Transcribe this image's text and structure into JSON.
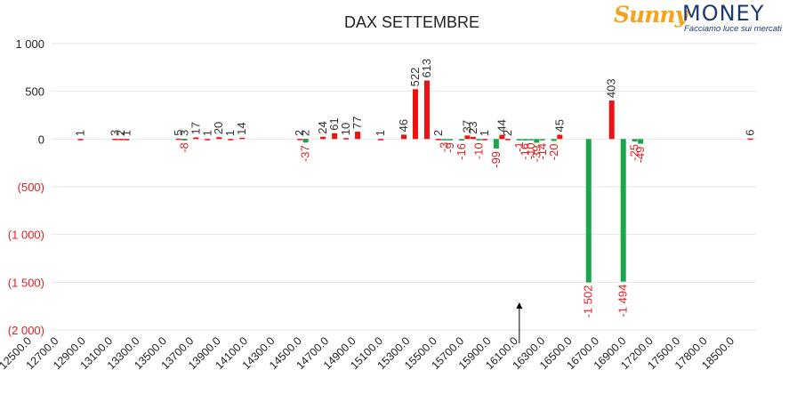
{
  "logo": {
    "brand_part1": "Sunny",
    "brand_part2": "MONEY",
    "tagline": "Facciamo luce sui mercati"
  },
  "chart_data": {
    "type": "bar",
    "title": "DAX SETTEMBRE",
    "xlabel": "",
    "ylabel": "",
    "ylim": [
      -2000,
      1000
    ],
    "yticks": [
      1000,
      500,
      0,
      -500,
      -1000,
      -1500,
      -2000
    ],
    "ytick_labels": [
      "1 000",
      "500",
      "0",
      "(500)",
      "(1 000)",
      "(1 500)",
      "(2 000)"
    ],
    "xtick_labels": [
      "12500.0",
      "12700.0",
      "12900.0",
      "13100.0",
      "13300.0",
      "13500.0",
      "13700.0",
      "13900.0",
      "14100.0",
      "14300.0",
      "14500.0",
      "14700.0",
      "14900.0",
      "15100.0",
      "15300.0",
      "15500.0",
      "15700.0",
      "15900.0",
      "16100.0",
      "16300.0",
      "16500.0",
      "16700.0",
      "16900.0",
      "17200.0",
      "17500.0",
      "17800.0",
      "18500.0"
    ],
    "grid": true,
    "colors": {
      "positive": "#ee1111",
      "negative": "#1aa64a",
      "positive_label": "#333333",
      "negative_label": "#dd2222",
      "grid": "#e6e6e6"
    },
    "marker": {
      "strike": 16500,
      "symbol": "arrow-up"
    },
    "series": [
      {
        "color": "#ee1111",
        "points": [
          {
            "strike": 12700,
            "value": 1
          },
          {
            "strike": 13000,
            "value": 3
          },
          {
            "strike": 13050,
            "value": 2
          },
          {
            "strike": 13100,
            "value": 1
          },
          {
            "strike": 13550,
            "value": 5
          },
          {
            "strike": 13600,
            "value": 3
          },
          {
            "strike": 13700,
            "value": 17
          },
          {
            "strike": 13800,
            "value": 1
          },
          {
            "strike": 13900,
            "value": 20
          },
          {
            "strike": 14000,
            "value": 1
          },
          {
            "strike": 14100,
            "value": 14
          },
          {
            "strike": 14600,
            "value": 2
          },
          {
            "strike": 14650,
            "value": 2
          },
          {
            "strike": 14800,
            "value": 24
          },
          {
            "strike": 14900,
            "value": 61
          },
          {
            "strike": 15000,
            "value": 10
          },
          {
            "strike": 15100,
            "value": 77
          },
          {
            "strike": 15300,
            "value": 1
          },
          {
            "strike": 15500,
            "value": 46
          },
          {
            "strike": 15600,
            "value": 522
          },
          {
            "strike": 15700,
            "value": 613
          },
          {
            "strike": 15800,
            "value": 2
          },
          {
            "strike": 16050,
            "value": 37
          },
          {
            "strike": 16100,
            "value": 23
          },
          {
            "strike": 16200,
            "value": 1
          },
          {
            "strike": 16350,
            "value": 44
          },
          {
            "strike": 16400,
            "value": 2
          },
          {
            "strike": 16850,
            "value": 45
          },
          {
            "strike": 17300,
            "value": 403
          },
          {
            "strike": 18500,
            "value": 6
          }
        ]
      },
      {
        "color": "#1aa64a",
        "points": [
          {
            "strike": 13600,
            "value": -8
          },
          {
            "strike": 14650,
            "value": -37
          },
          {
            "strike": 15850,
            "value": -3
          },
          {
            "strike": 15900,
            "value": -9
          },
          {
            "strike": 16000,
            "value": -16
          },
          {
            "strike": 16150,
            "value": -10
          },
          {
            "strike": 16300,
            "value": -99
          },
          {
            "strike": 16500,
            "value": -1
          },
          {
            "strike": 16550,
            "value": -16
          },
          {
            "strike": 16600,
            "value": -10
          },
          {
            "strike": 16650,
            "value": -39
          },
          {
            "strike": 16700,
            "value": -14
          },
          {
            "strike": 16800,
            "value": -20
          },
          {
            "strike": 17100,
            "value": -1502
          },
          {
            "strike": 17400,
            "value": -1494
          },
          {
            "strike": 17500,
            "value": -25
          },
          {
            "strike": 17550,
            "value": -49
          }
        ]
      }
    ]
  }
}
